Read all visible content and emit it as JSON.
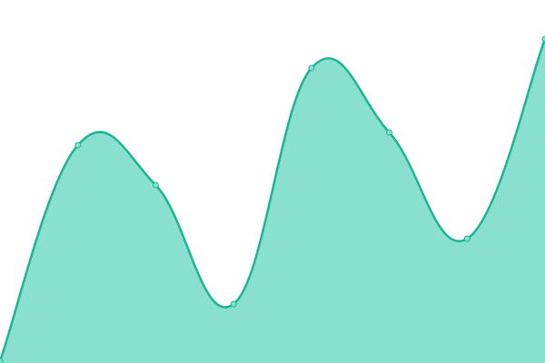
{
  "chart_data": {
    "type": "area",
    "values": [
      2,
      240,
      196,
      65,
      325,
      254,
      137,
      357
    ],
    "color": "#1db493",
    "fill": "#8ae0cf",
    "ylim": [
      0,
      400
    ]
  }
}
